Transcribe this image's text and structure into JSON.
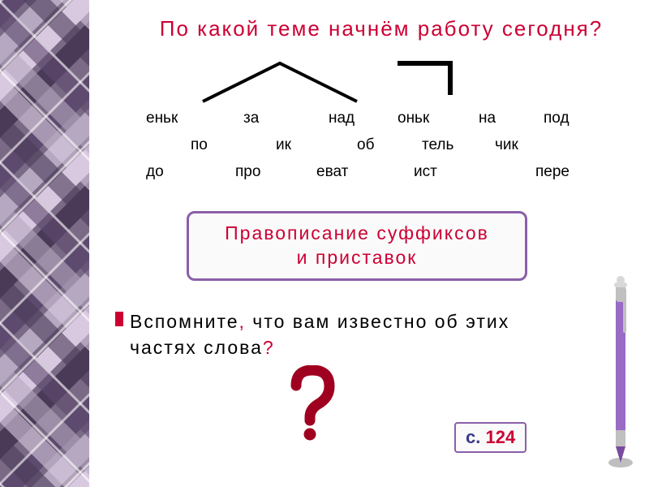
{
  "title": "По  какой  теме  начнём  работу  сегодня?",
  "morphemes": {
    "row1": [
      "еньк",
      "за",
      "над",
      "оньк",
      "на",
      "под"
    ],
    "row1_x": [
      0,
      120,
      225,
      310,
      410,
      490
    ],
    "row2": [
      "по",
      "ик",
      "об",
      "тель",
      "чик"
    ],
    "row2_x": [
      55,
      160,
      260,
      340,
      430
    ],
    "row3": [
      "до",
      "про",
      "еват",
      "ист",
      "пере"
    ],
    "row3_x": [
      0,
      110,
      210,
      330,
      480
    ]
  },
  "topic": {
    "line1": "Правописание  суффиксов",
    "line2": "и  приставок"
  },
  "recall": {
    "text_before": "Вспомните",
    "comma": ",",
    "text_mid": " что  вам  известно  об этих  частях  слова",
    "qmark": "?"
  },
  "page_ref": {
    "prefix": "с. ",
    "num": "124"
  },
  "colors": {
    "accent": "#cc0033",
    "purple": "#8a5fa8",
    "text": "#000000",
    "bg": "#ffffff",
    "page_num": "#cc0033",
    "plaid_bg": "#6b5b7b"
  }
}
